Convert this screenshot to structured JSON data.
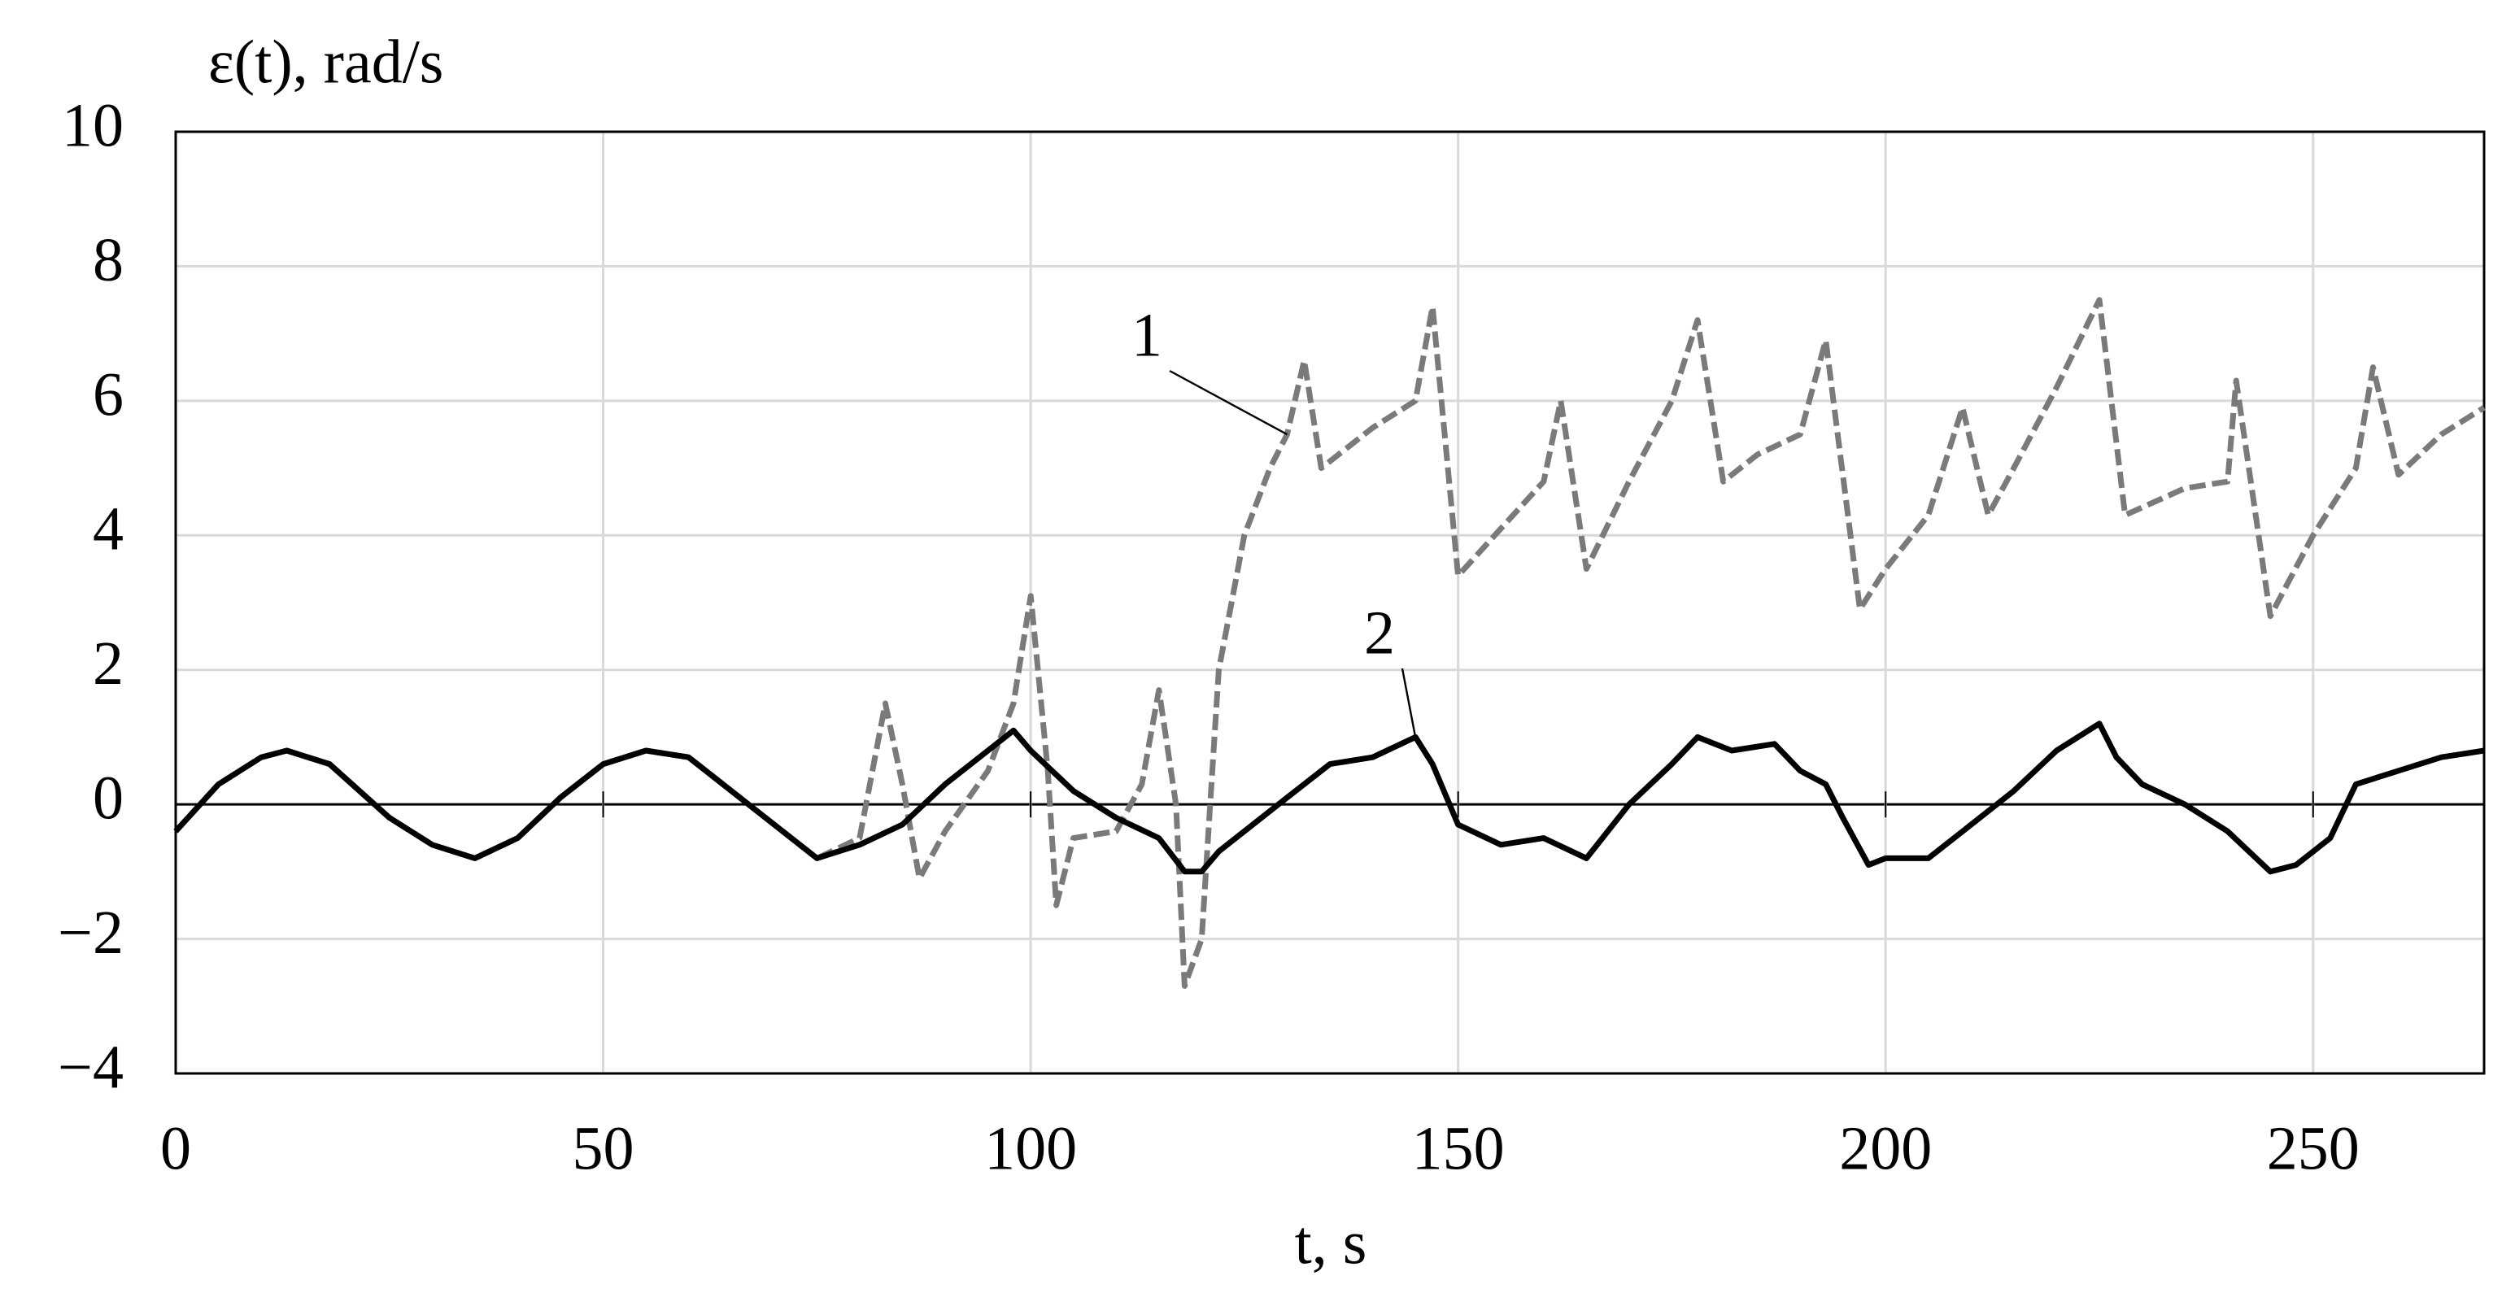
{
  "chart_data": {
    "type": "line",
    "y_label": "ε(t), rad/s",
    "x_label": "t, s",
    "xlim": [
      0,
      270
    ],
    "xticks": [
      0,
      50,
      100,
      150,
      200,
      250
    ],
    "ylim": [
      -4,
      10
    ],
    "yticks": [
      {
        "value": -4,
        "label": "−4"
      },
      {
        "value": -2,
        "label": "−2"
      },
      0,
      2,
      4,
      6,
      8,
      10
    ],
    "grid": true,
    "series": [
      {
        "name": "1",
        "color": "#7a7a7a",
        "dashed": true,
        "x": [
          0,
          5,
          10,
          13,
          18,
          25,
          30,
          35,
          40,
          45,
          50,
          55,
          60,
          65,
          70,
          75,
          80,
          83,
          85,
          87,
          90,
          95,
          98,
          100,
          102,
          103,
          105,
          110,
          113,
          115,
          117,
          118,
          120,
          121,
          122,
          125,
          128,
          130,
          132,
          134,
          140,
          145,
          147,
          150,
          155,
          160,
          162,
          165,
          170,
          175,
          178,
          181,
          185,
          190,
          193,
          197,
          200,
          205,
          209,
          212,
          215,
          220,
          225,
          228,
          235,
          240,
          241,
          245,
          250,
          255,
          257,
          260,
          265,
          270
        ],
        "values": [
          -0.4,
          0.3,
          0.7,
          0.8,
          0.6,
          -0.2,
          -0.6,
          -0.8,
          -0.5,
          0.1,
          0.6,
          0.8,
          0.7,
          0.2,
          -0.3,
          -0.8,
          -0.5,
          1.5,
          0.3,
          -1.1,
          -0.4,
          0.5,
          1.5,
          3.1,
          0.5,
          -1.5,
          -0.5,
          -0.4,
          0.3,
          1.7,
          0.0,
          -2.7,
          -2.0,
          0.0,
          2.0,
          4.0,
          5.0,
          5.5,
          6.6,
          5.0,
          5.6,
          6.0,
          7.4,
          3.4,
          4.1,
          4.8,
          6.0,
          3.5,
          4.8,
          6.0,
          7.2,
          4.8,
          5.2,
          5.5,
          6.9,
          2.9,
          3.5,
          4.3,
          5.9,
          4.3,
          5.0,
          6.2,
          7.5,
          4.3,
          4.7,
          4.8,
          6.3,
          2.8,
          4.0,
          5.0,
          6.5,
          4.9,
          5.5,
          5.9
        ]
      },
      {
        "name": "2",
        "color": "#000000",
        "dashed": false,
        "x": [
          0,
          5,
          10,
          13,
          18,
          25,
          30,
          35,
          40,
          45,
          50,
          55,
          60,
          65,
          70,
          75,
          80,
          85,
          90,
          95,
          98,
          100,
          105,
          110,
          115,
          118,
          120,
          122,
          125,
          130,
          135,
          140,
          145,
          147,
          150,
          155,
          160,
          165,
          170,
          175,
          178,
          182,
          187,
          190,
          193,
          195,
          198,
          200,
          205,
          210,
          215,
          220,
          225,
          227,
          230,
          235,
          240,
          245,
          248,
          252,
          255,
          260,
          265,
          270
        ],
        "values": [
          -0.4,
          0.3,
          0.7,
          0.8,
          0.6,
          -0.2,
          -0.6,
          -0.8,
          -0.5,
          0.1,
          0.6,
          0.8,
          0.7,
          0.2,
          -0.3,
          -0.8,
          -0.6,
          -0.3,
          0.3,
          0.8,
          1.1,
          0.8,
          0.2,
          -0.2,
          -0.5,
          -1.0,
          -1.0,
          -0.7,
          -0.4,
          0.1,
          0.6,
          0.7,
          1.0,
          0.6,
          -0.3,
          -0.6,
          -0.5,
          -0.8,
          0.0,
          0.6,
          1.0,
          0.8,
          0.9,
          0.5,
          0.3,
          -0.2,
          -0.9,
          -0.8,
          -0.8,
          -0.3,
          0.2,
          0.8,
          1.2,
          0.7,
          0.3,
          0.0,
          -0.4,
          -1.0,
          -0.9,
          -0.5,
          0.3,
          0.5,
          0.7,
          0.8
        ]
      }
    ]
  }
}
